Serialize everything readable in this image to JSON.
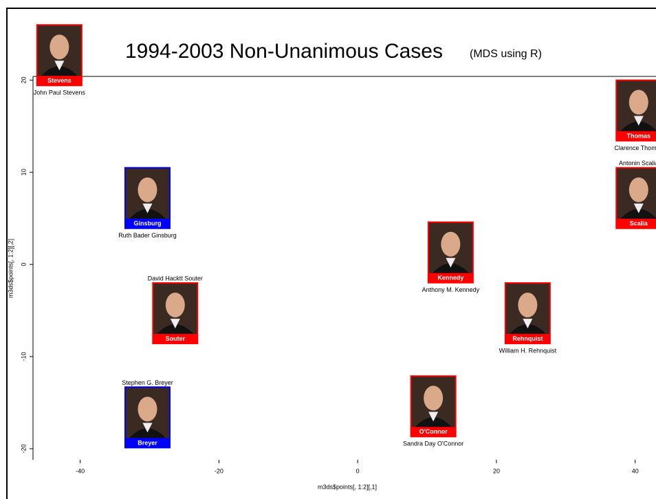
{
  "chart_data": {
    "type": "scatter",
    "title": "1994-2003 Non-Unanimous Cases",
    "subtitle": "(MDS using R)",
    "x_label": "m3ds$points[, 1:2][,1]",
    "y_label": "m3ds$points[, 1:2][,2]",
    "labels": [
      "John Paul Stevens",
      "Ruth Bader Ginsburg",
      "David Hacktt Souter",
      "Stephen G. Breyer",
      "Anthony M. Kennedy",
      "William H. Rehnquist",
      "Sandra Day O'Connor",
      "Clarence Thomas",
      "Antonin Scalia"
    ],
    "badges": [
      "Stevens",
      "Ginsburg",
      "Souter",
      "Breyer",
      "Kennedy",
      "Rehnquist",
      "O'Connor",
      "Thomas",
      "Scalia"
    ],
    "x": [
      -43,
      -30.3,
      -26.3,
      -30.3,
      13.4,
      24.5,
      10.9,
      40.5,
      40.5
    ],
    "values": [
      22.7,
      7.2,
      -5.3,
      -16.6,
      1.3,
      -5.3,
      -15.4,
      16.7,
      7.2
    ],
    "colors": [
      "#ff0000",
      "#0000ff",
      "#ff0000",
      "#0000ff",
      "#ff0000",
      "#ff0000",
      "#ff0000",
      "#ff0000",
      "#ff0000"
    ],
    "xlim": [
      -46.8,
      43
    ],
    "ylim": [
      -21.2,
      20.4
    ],
    "xticks": [
      -40,
      -20,
      0,
      20,
      40
    ],
    "yticks": [
      -20,
      -10,
      0,
      10,
      20
    ]
  }
}
